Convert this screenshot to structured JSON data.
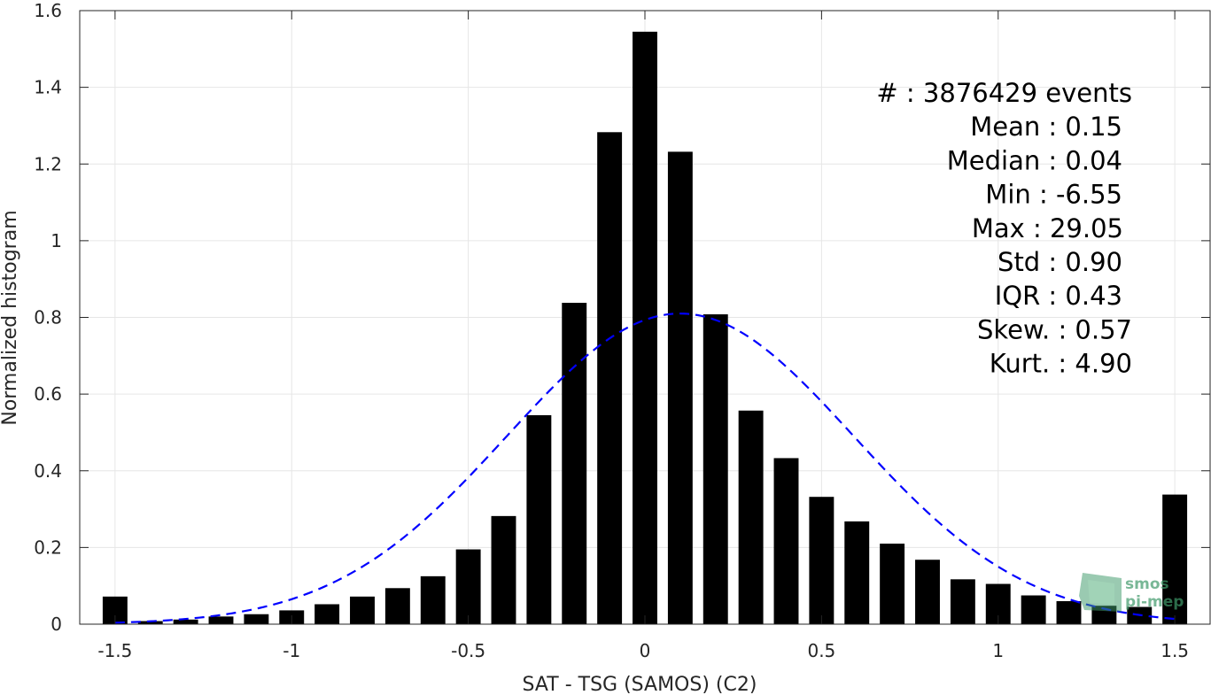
{
  "chart_data": {
    "type": "bar",
    "xlabel": "SAT - TSG (SAMOS) (C2)",
    "ylabel": "Normalized histogram",
    "xlim": [
      -1.6,
      1.6
    ],
    "ylim": [
      0,
      1.6
    ],
    "x_ticks": [
      -1.5,
      -1,
      -0.5,
      0,
      0.5,
      1,
      1.5
    ],
    "x_tick_labels": [
      "-1.5",
      "-1",
      "-0.5",
      "0",
      "0.5",
      "1",
      "1.5"
    ],
    "y_ticks": [
      0,
      0.2,
      0.4,
      0.6,
      0.8,
      1,
      1.2,
      1.4,
      1.6
    ],
    "y_tick_labels": [
      "0",
      "0.2",
      "0.4",
      "0.6",
      "0.8",
      "1",
      "1.2",
      "1.4",
      "1.6"
    ],
    "grid": true,
    "bars": {
      "x": [
        -1.5,
        -1.4,
        -1.3,
        -1.2,
        -1.1,
        -1.0,
        -0.9,
        -0.8,
        -0.7,
        -0.6,
        -0.5,
        -0.4,
        -0.3,
        -0.2,
        -0.1,
        0.0,
        0.1,
        0.2,
        0.3,
        0.4,
        0.5,
        0.6,
        0.7,
        0.8,
        0.9,
        1.0,
        1.1,
        1.2,
        1.3,
        1.4,
        1.5
      ],
      "values": [
        0.072,
        0.008,
        0.012,
        0.02,
        0.026,
        0.036,
        0.052,
        0.072,
        0.094,
        0.125,
        0.195,
        0.282,
        0.545,
        0.838,
        1.283,
        1.545,
        1.232,
        0.808,
        0.557,
        0.433,
        0.332,
        0.268,
        0.21,
        0.168,
        0.117,
        0.105,
        0.075,
        0.06,
        0.048,
        0.045,
        0.338
      ],
      "color": "#000000"
    },
    "fit_curve": {
      "type": "normal",
      "mean": 0.1,
      "std": 0.49,
      "peak": 0.81,
      "style": "dashed",
      "color": "#0000ff"
    },
    "stats": [
      {
        "label": "#  : 3876429 events"
      },
      {
        "label": "Mean : 0.15"
      },
      {
        "label": "Median : 0.04"
      },
      {
        "label": "Min : -6.55"
      },
      {
        "label": "Max : 29.05"
      },
      {
        "label": "Std : 0.90"
      },
      {
        "label": "IQR : 0.43"
      },
      {
        "label": "Skew. : 0.57"
      },
      {
        "label": "Kurt. : 4.90"
      }
    ]
  },
  "logo": {
    "line1": "smos",
    "line2": "pi-mep",
    "color": "#3f9a6a"
  }
}
